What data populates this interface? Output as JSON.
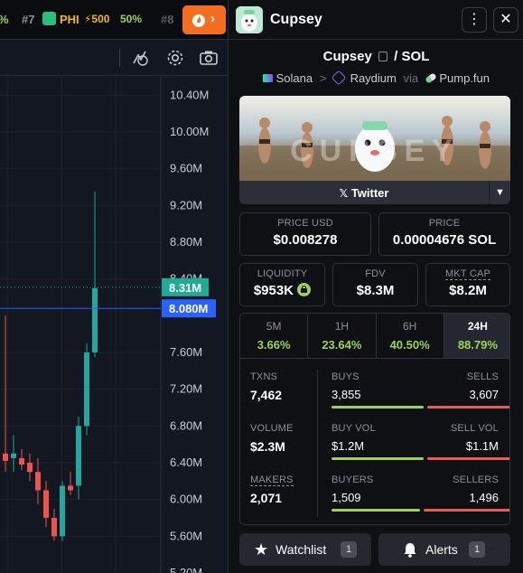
{
  "ticker": {
    "left_fragment": "%",
    "item1_rank": "#7",
    "item1_symbol": "PHI",
    "item1_boost": "⚡500",
    "item1_change": "50%",
    "item2_rank": "#8"
  },
  "chart": {
    "price_axis": [
      "10.40M",
      "10.00M",
      "9.60M",
      "9.20M",
      "8.80M",
      "8.40M",
      "7.60M",
      "7.20M",
      "6.80M",
      "6.40M",
      "6.00M",
      "5.60M",
      "5.20M"
    ],
    "last_price_label": "8.31M",
    "crosshair_label": "8.080M",
    "colors": {
      "up": "#26a69a",
      "down": "#ef5350",
      "last_price": "#22ab94",
      "crosshair": "#2962ff"
    }
  },
  "chart_data": {
    "type": "candlestick",
    "ylim": [
      5.2,
      10.6
    ],
    "candles": [
      {
        "o": 6.8,
        "h": 7.0,
        "l": 6.4,
        "c": 6.55
      },
      {
        "o": 6.5,
        "h": 8.0,
        "l": 6.3,
        "c": 6.42
      },
      {
        "o": 6.45,
        "h": 6.7,
        "l": 6.3,
        "c": 6.5
      },
      {
        "o": 6.45,
        "h": 6.55,
        "l": 6.32,
        "c": 6.38
      },
      {
        "o": 6.4,
        "h": 6.5,
        "l": 6.2,
        "c": 6.3
      },
      {
        "o": 6.3,
        "h": 6.45,
        "l": 5.95,
        "c": 6.1
      },
      {
        "o": 6.1,
        "h": 6.2,
        "l": 5.7,
        "c": 5.8
      },
      {
        "o": 5.8,
        "h": 5.9,
        "l": 5.55,
        "c": 5.6
      },
      {
        "o": 5.6,
        "h": 6.2,
        "l": 5.55,
        "c": 6.15
      },
      {
        "o": 6.15,
        "h": 6.3,
        "l": 6.05,
        "c": 6.1
      },
      {
        "o": 6.15,
        "h": 6.9,
        "l": 6.0,
        "c": 6.8
      },
      {
        "o": 6.8,
        "h": 7.7,
        "l": 6.7,
        "c": 7.6
      },
      {
        "o": 7.6,
        "h": 9.35,
        "l": 7.55,
        "c": 8.3
      }
    ]
  },
  "header": {
    "title": "Cupsey",
    "more_icon": "kebab-icon",
    "close_icon": "close-icon"
  },
  "pair": {
    "base": "Cupsey",
    "separator": "/",
    "quote": "SOL",
    "chain": "Solana",
    "arrow": ">",
    "dex": "Raydium",
    "via": "via",
    "launchpad": "Pump.fun"
  },
  "banner": {
    "text": "CUPSEY"
  },
  "twitter": {
    "label": "Twitter"
  },
  "stats": {
    "price_usd_label": "PRICE USD",
    "price_usd": "$0.008278",
    "price_label": "PRICE",
    "price_sol": "0.00004676 SOL",
    "liquidity_label": "LIQUIDITY",
    "liquidity": "$953K",
    "fdv_label": "FDV",
    "fdv": "$8.3M",
    "mktcap_label": "MKT CAP",
    "mktcap": "$8.2M"
  },
  "periods": [
    {
      "label": "5M",
      "change": "3.66%"
    },
    {
      "label": "1H",
      "change": "23.64%"
    },
    {
      "label": "6H",
      "change": "40.50%"
    },
    {
      "label": "24H",
      "change": "88.79%"
    }
  ],
  "metrics": {
    "txns_label": "TXNS",
    "txns": "7,462",
    "volume_label": "VOLUME",
    "volume": "$2.3M",
    "makers_label": "MAKERS",
    "makers": "2,071",
    "buys_label": "BUYS",
    "buys": "3,855",
    "sells_label": "SELLS",
    "sells": "3,607",
    "buy_vol_label": "BUY VOL",
    "buy_vol": "$1.2M",
    "sell_vol_label": "SELL VOL",
    "sell_vol": "$1.1M",
    "buyers_label": "BUYERS",
    "buyers": "1,509",
    "sellers_label": "SELLERS",
    "sellers": "1,496",
    "buy_share": 0.52,
    "buy_vol_share": 0.52,
    "buyer_share": 0.5,
    "buy_color": "#9fd15a",
    "sell_color": "#e95c5c"
  },
  "footer": {
    "watchlist_label": "Watchlist",
    "watchlist_count": "1",
    "alerts_label": "Alerts",
    "alerts_count": "1"
  }
}
